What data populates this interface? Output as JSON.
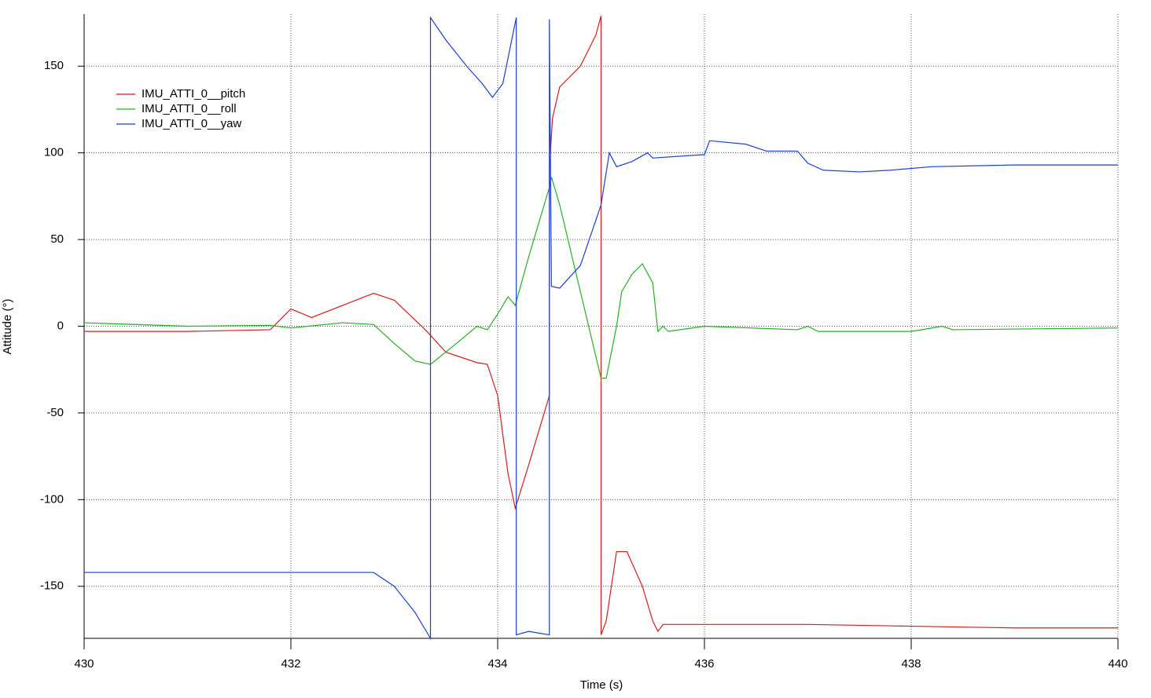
{
  "chart_data": {
    "type": "line",
    "xlabel": "Time (s)",
    "ylabel": "Attitude (°)",
    "xlim": [
      430,
      440
    ],
    "xticks": [
      430,
      432,
      434,
      436,
      438,
      440
    ],
    "ylim": [
      -180,
      180
    ],
    "yticks": [
      -150,
      -100,
      -50,
      0,
      50,
      100,
      150
    ],
    "grid": true,
    "legend": "upper left",
    "series": [
      {
        "name": "IMU_ATTI_0__pitch",
        "color": "#d41c1c",
        "x": [
          430,
          431,
          431.8,
          432,
          432.2,
          432.8,
          433.0,
          433.3,
          433.5,
          433.8,
          433.9,
          434.0,
          434.1,
          434.17,
          434.3,
          434.45,
          434.5,
          434.5,
          434.53,
          434.6,
          434.8,
          434.95,
          435.0,
          435.0,
          435.05,
          435.15,
          435.25,
          435.4,
          435.5,
          435.55,
          435.6,
          436,
          437,
          438,
          439,
          440
        ],
        "values": [
          -3,
          -3,
          -2,
          10,
          5,
          19,
          15,
          -2,
          -15,
          -21,
          -22,
          -40,
          -85,
          -105,
          -80,
          -50,
          -40,
          90,
          120,
          138,
          150,
          168,
          179,
          -178,
          -170,
          -130,
          -130,
          -150,
          -170,
          -176,
          -172,
          -172,
          -172,
          -173,
          -174,
          -174
        ]
      },
      {
        "name": "IMU_ATTI_0__roll",
        "color": "#22b022",
        "x": [
          430,
          431,
          431.8,
          432,
          432.5,
          432.8,
          433,
          433.2,
          433.35,
          433.6,
          433.8,
          433.9,
          434,
          434.1,
          434.17,
          434.3,
          434.5,
          434.52,
          434.6,
          434.8,
          435.0,
          435.05,
          435.15,
          435.2,
          435.3,
          435.4,
          435.5,
          435.55,
          435.6,
          435.65,
          436,
          436.9,
          437,
          437.1,
          438,
          438.3,
          438.4,
          440
        ],
        "values": [
          2,
          0,
          0.5,
          -1,
          2,
          1,
          -10,
          -20,
          -22,
          -10,
          0,
          -2,
          7,
          17,
          12,
          40,
          80,
          86,
          70,
          20,
          -30,
          -30,
          0,
          20,
          30,
          36,
          25,
          -3,
          0,
          -3,
          0,
          -2,
          0,
          -3,
          -3,
          0,
          -2,
          -1
        ]
      },
      {
        "name": "IMU_ATTI_0__yaw",
        "color": "#1a3fd0",
        "x": [
          430,
          432,
          432.8,
          433,
          433.2,
          433.35,
          433.35,
          433.5,
          433.7,
          433.85,
          433.95,
          434.05,
          434.18,
          434.18,
          434.3,
          434.4,
          434.5,
          434.5,
          434.52,
          434.6,
          434.8,
          435.0,
          435.08,
          435.15,
          435.3,
          435.45,
          435.5,
          436,
          436.05,
          436.4,
          436.6,
          436.9,
          437,
          437.15,
          437.5,
          437.8,
          438.2,
          439,
          440
        ],
        "values": [
          -142,
          -142,
          -142,
          -150,
          -165,
          -180,
          178,
          165,
          150,
          140,
          132,
          140,
          178,
          -178,
          -176,
          -177,
          -178,
          177,
          23,
          22,
          35,
          70,
          100,
          92,
          95,
          100,
          97,
          99,
          107,
          105,
          101,
          101,
          94,
          90,
          89,
          90,
          92,
          93,
          93
        ]
      }
    ]
  }
}
